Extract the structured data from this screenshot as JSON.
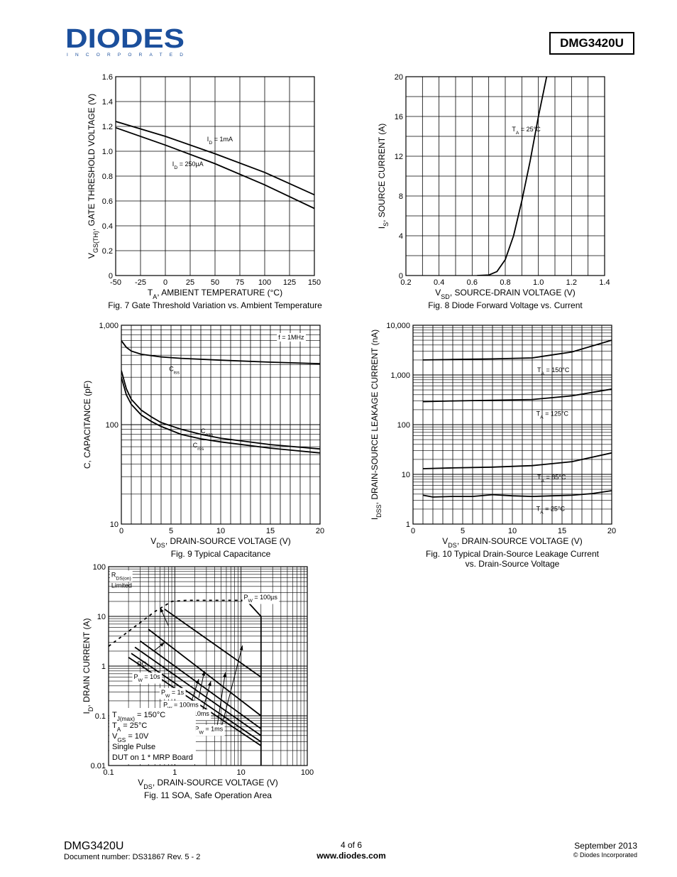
{
  "header": {
    "logo_text": "DIODES",
    "logo_subtext": "INCORPORATED",
    "part_number": "DMG3420U"
  },
  "footer": {
    "part_number": "DMG3420U",
    "document_number": "Document number: DS31867 Rev. 5 - 2",
    "page": "4 of 6",
    "url": "www.diodes.com",
    "date": "September 2013",
    "copyright": "© Diodes Incorporated"
  },
  "chart_data": [
    {
      "id": "fig7",
      "type": "line",
      "caption": "Fig. 7 Gate Threshold Variation vs. Ambient Temperature",
      "xlabel_parts": [
        [
          "T",
          ""
        ],
        [
          "A",
          "sub"
        ],
        [
          ", AMBIENT TEMPERATURE (°C)",
          ""
        ]
      ],
      "ylabel_parts": [
        [
          "V",
          ""
        ],
        [
          "GS(TH)",
          "sub"
        ],
        [
          ", GATE THRESHOLD VOLTAGE (V)",
          ""
        ]
      ],
      "xlim": [
        -50,
        150
      ],
      "ylim": [
        0,
        1.6
      ],
      "xticks": [
        -50,
        -25,
        0,
        25,
        50,
        75,
        100,
        125,
        150
      ],
      "xtick_labels": [
        "-50",
        "-25",
        "0",
        "25",
        "50",
        "75",
        "100",
        "125",
        "150"
      ],
      "yticks": [
        0,
        0.2,
        0.4,
        0.6,
        0.8,
        1.0,
        1.2,
        1.4,
        1.6
      ],
      "ytick_labels": [
        "0",
        "0.2",
        "0.4",
        "0.6",
        "0.8",
        "1.0",
        "1.2",
        "1.4",
        "1.6"
      ],
      "grid": true,
      "series": [
        {
          "x": [
            -50,
            0,
            50,
            100,
            150
          ],
          "y": [
            1.24,
            1.12,
            0.98,
            0.83,
            0.65
          ]
        },
        {
          "x": [
            -50,
            0,
            50,
            100,
            150
          ],
          "y": [
            1.19,
            1.05,
            0.9,
            0.73,
            0.54
          ]
        }
      ],
      "annotations": [
        {
          "parts": [
            [
              "I",
              ""
            ],
            [
              "D",
              "sub"
            ],
            [
              " = 1mA",
              ""
            ]
          ],
          "x": 42,
          "y": 1.08
        },
        {
          "parts": [
            [
              "I",
              ""
            ],
            [
              "D",
              "sub"
            ],
            [
              " = 250µA",
              ""
            ]
          ],
          "x": 7,
          "y": 0.88
        }
      ]
    },
    {
      "id": "fig8",
      "type": "line",
      "caption": "Fig. 8 Diode Forward Voltage vs. Current",
      "xlabel_parts": [
        [
          "V",
          ""
        ],
        [
          "SD",
          "sub"
        ],
        [
          ", SOURCE-DRAIN VOLTAGE (V)",
          ""
        ]
      ],
      "ylabel_parts": [
        [
          "I",
          ""
        ],
        [
          "S",
          "sub"
        ],
        [
          ", SOURCE CURRENT (A)",
          ""
        ]
      ],
      "xlim": [
        0.2,
        1.4
      ],
      "ylim": [
        0,
        20
      ],
      "xticks": [
        0.2,
        0.4,
        0.6,
        0.8,
        1.0,
        1.2,
        1.4
      ],
      "xtick_labels": [
        "0.2",
        "0.4",
        "0.6",
        "0.8",
        "1.0",
        "1.2",
        "1.4"
      ],
      "yticks": [
        0,
        4,
        8,
        12,
        16,
        20
      ],
      "ytick_labels": [
        "0",
        "4",
        "8",
        "12",
        "16",
        "20"
      ],
      "minor_x_step": 0.1,
      "minor_y_step": 2,
      "grid": true,
      "series": [
        {
          "name": "TA = 25°C",
          "x": [
            0.63,
            0.7,
            0.75,
            0.8,
            0.85,
            0.9,
            0.95,
            1.0,
            1.05
          ],
          "y": [
            0.0,
            0.05,
            0.4,
            1.6,
            4.0,
            7.5,
            11.5,
            16.0,
            20.0
          ]
        }
      ],
      "annotations": [
        {
          "parts": [
            [
              "T",
              ""
            ],
            [
              "A",
              "sub"
            ],
            [
              " = 25°C",
              ""
            ]
          ],
          "x": 0.84,
          "y": 14.5
        }
      ]
    },
    {
      "id": "fig9",
      "type": "line",
      "caption": "Fig. 9 Typical Capacitance",
      "xlabel_parts": [
        [
          "V",
          ""
        ],
        [
          "DS",
          "sub"
        ],
        [
          ", DRAIN-SOURCE VOLTAGE (V)",
          ""
        ]
      ],
      "ylabel_parts": [
        [
          "C, CAPACITANCE (pF)",
          ""
        ]
      ],
      "xlim": [
        0,
        20
      ],
      "ylim": [
        10,
        1000
      ],
      "ylog": true,
      "xticks": [
        0,
        5,
        10,
        15,
        20
      ],
      "xtick_labels": [
        "0",
        "5",
        "10",
        "15",
        "20"
      ],
      "yticks": [
        10,
        100,
        1000
      ],
      "ytick_labels": [
        "10",
        "100",
        "1,000"
      ],
      "minor_x_step": 1,
      "grid": true,
      "series": [
        {
          "name": "Ciss",
          "x": [
            0,
            0.5,
            1,
            2,
            4,
            6,
            10,
            15,
            20
          ],
          "y": [
            700,
            600,
            550,
            510,
            480,
            465,
            445,
            425,
            410
          ]
        },
        {
          "name": "Coss",
          "x": [
            0,
            0.5,
            1,
            2,
            3,
            4,
            6,
            8,
            10,
            15,
            20
          ],
          "y": [
            350,
            230,
            180,
            140,
            120,
            105,
            90,
            80,
            73,
            63,
            57
          ]
        },
        {
          "name": "Crss",
          "x": [
            0,
            0.5,
            1,
            2,
            3,
            4,
            6,
            8,
            10,
            15,
            20
          ],
          "y": [
            300,
            200,
            160,
            125,
            108,
            96,
            80,
            72,
            67,
            58,
            52
          ]
        }
      ],
      "annotations": [
        {
          "parts": [
            [
              "f = 1MHz",
              ""
            ]
          ],
          "x": 15.8,
          "y": 720,
          "box": true
        },
        {
          "parts": [
            [
              "C",
              ""
            ],
            [
              "iss",
              "sub"
            ]
          ],
          "x": 4.8,
          "y": 345
        },
        {
          "parts": [
            [
              "C",
              ""
            ],
            [
              "oss",
              "sub"
            ]
          ],
          "x": 8.0,
          "y": 82
        },
        {
          "parts": [
            [
              "C",
              ""
            ],
            [
              "rss",
              "sub"
            ]
          ],
          "x": 7.2,
          "y": 59
        }
      ]
    },
    {
      "id": "fig10",
      "type": "line",
      "caption": "Fig. 10 Typical Drain-Source Leakage Current",
      "caption2": "vs. Drain-Source Voltage",
      "xlabel_parts": [
        [
          "V",
          ""
        ],
        [
          "DS",
          "sub"
        ],
        [
          ", DRAIN-SOURCE VOLTAGE (V)",
          ""
        ]
      ],
      "ylabel_parts": [
        [
          "I",
          ""
        ],
        [
          "DSS",
          "sub"
        ],
        [
          ", DRAIN-SOURCE LEAKAGE CURRENT (nA)",
          ""
        ]
      ],
      "xlim": [
        0,
        20
      ],
      "ylim": [
        1,
        10000
      ],
      "ylog": true,
      "xticks": [
        0,
        5,
        10,
        15,
        20
      ],
      "xtick_labels": [
        "0",
        "5",
        "10",
        "15",
        "20"
      ],
      "yticks": [
        1,
        10,
        100,
        1000,
        10000
      ],
      "ytick_labels": [
        "1",
        "10",
        "100",
        "1,000",
        "10,000"
      ],
      "minor_x_step": 1,
      "grid": true,
      "series": [
        {
          "name": "TA = 150°C",
          "x": [
            1,
            4,
            8,
            12,
            16,
            20
          ],
          "y": [
            2000,
            2050,
            2100,
            2200,
            2900,
            5000
          ]
        },
        {
          "name": "TA = 125°C",
          "x": [
            1,
            4,
            8,
            12,
            16,
            20
          ],
          "y": [
            290,
            300,
            310,
            320,
            380,
            520
          ]
        },
        {
          "name": "TA = 85°C",
          "x": [
            1,
            4,
            8,
            12,
            16,
            20
          ],
          "y": [
            13,
            13.5,
            14,
            15,
            18,
            27
          ]
        },
        {
          "name": "TA = 25°C",
          "x": [
            1,
            2,
            4,
            6,
            8,
            10,
            12,
            14,
            16,
            18,
            20
          ],
          "y": [
            3.8,
            3.5,
            3.6,
            3.6,
            3.9,
            3.7,
            3.6,
            3.7,
            3.8,
            4.1,
            4.7
          ]
        }
      ],
      "annotations": [
        {
          "parts": [
            [
              "T",
              ""
            ],
            [
              "A",
              "sub"
            ],
            [
              " = 150°C",
              ""
            ]
          ],
          "x": 12.5,
          "y": 1150
        },
        {
          "parts": [
            [
              "T",
              ""
            ],
            [
              "A",
              "sub"
            ],
            [
              " = 125°C",
              ""
            ]
          ],
          "x": 12.4,
          "y": 150
        },
        {
          "parts": [
            [
              "T",
              ""
            ],
            [
              "A",
              "sub"
            ],
            [
              " = 85°C",
              ""
            ]
          ],
          "x": 12.5,
          "y": 8
        },
        {
          "parts": [
            [
              "T",
              ""
            ],
            [
              "A",
              "sub"
            ],
            [
              " = 25°C",
              ""
            ]
          ],
          "x": 12.4,
          "y": 1.85
        }
      ]
    },
    {
      "id": "fig11",
      "type": "line",
      "caption": "Fig. 11 SOA, Safe Operation Area",
      "xlabel_parts": [
        [
          "V",
          ""
        ],
        [
          "DS",
          "sub"
        ],
        [
          ", DRAIN-SOURCE VOLTAGE (V)",
          ""
        ]
      ],
      "ylabel_parts": [
        [
          "I",
          ""
        ],
        [
          "D",
          "sub"
        ],
        [
          ", DRAIN CURRENT (A)",
          ""
        ]
      ],
      "xlim": [
        0.1,
        100
      ],
      "ylim": [
        0.01,
        100
      ],
      "xlog": true,
      "ylog": true,
      "xticks": [
        0.1,
        1,
        10,
        100
      ],
      "xtick_labels": [
        "0.1",
        "1",
        "10",
        "100"
      ],
      "yticks": [
        0.01,
        0.1,
        1,
        10,
        100
      ],
      "ytick_labels": [
        "0.01",
        "0.1",
        "1",
        "10",
        "100"
      ],
      "grid": true,
      "series": [
        {
          "name": "RDS(on) Limited",
          "dashed": true,
          "x": [
            0.1,
            0.2,
            0.5,
            0.9,
            1.5,
            3.0,
            6.0,
            10.0,
            12.0
          ],
          "y": [
            2.5,
            5.0,
            12.5,
            20.0,
            21.0,
            21.0,
            21.0,
            21.0,
            21.0
          ]
        },
        {
          "name": "PW = 100µs",
          "x": [
            12.0,
            20.0,
            20.0
          ],
          "y": [
            21.0,
            10.0,
            0.01
          ]
        },
        {
          "name": "PW = 1ms",
          "x": [
            0.7,
            20.0
          ],
          "y": [
            14.0,
            0.6
          ]
        },
        {
          "name": "PW = 10ms",
          "x": [
            0.4,
            20.0
          ],
          "y": [
            5.5,
            0.1
          ]
        },
        {
          "name": "PW = 100ms",
          "x": [
            0.3,
            20.0
          ],
          "y": [
            3.2,
            0.055
          ]
        },
        {
          "name": "PW = 1s",
          "x": [
            0.25,
            20.0
          ],
          "y": [
            2.4,
            0.04
          ]
        },
        {
          "name": "PW = 10s",
          "x": [
            0.22,
            20.0
          ],
          "y": [
            1.8,
            0.03
          ]
        },
        {
          "name": "DC",
          "x": [
            0.2,
            20.0
          ],
          "y": [
            1.5,
            0.025
          ]
        }
      ],
      "annotations": [
        {
          "parts": [
            [
              "R",
              ""
            ],
            [
              "DS(on)",
              "sub"
            ]
          ],
          "x": 0.11,
          "y": 62,
          "box": true
        },
        {
          "parts": [
            [
              "Limited",
              ""
            ]
          ],
          "x": 0.11,
          "y": 38
        },
        {
          "parts": [
            [
              "P",
              ""
            ],
            [
              "W",
              "sub"
            ],
            [
              " = 100µs",
              ""
            ]
          ],
          "x": 11.0,
          "y": 22,
          "box": true
        },
        {
          "parts": [
            [
              "DC",
              ""
            ]
          ],
          "x": 0.27,
          "y": 1.0
        },
        {
          "parts": [
            [
              "P",
              ""
            ],
            [
              "W",
              "sub"
            ],
            [
              " = 10s",
              ""
            ]
          ],
          "x": 0.24,
          "y": 0.55,
          "box": true
        },
        {
          "parts": [
            [
              "P",
              ""
            ],
            [
              "W",
              "sub"
            ],
            [
              " = 1s",
              ""
            ]
          ],
          "x": 0.62,
          "y": 0.27,
          "box": true
        },
        {
          "parts": [
            [
              "P",
              ""
            ],
            [
              "W",
              "sub"
            ],
            [
              " = 100ms",
              ""
            ]
          ],
          "x": 0.67,
          "y": 0.15,
          "box": true
        },
        {
          "parts": [
            [
              "P",
              ""
            ],
            [
              "W",
              "sub"
            ],
            [
              " = 10ms",
              ""
            ]
          ],
          "x": 1.1,
          "y": 0.1,
          "box": true
        },
        {
          "parts": [
            [
              "P",
              ""
            ],
            [
              "W",
              "sub"
            ],
            [
              " = 1ms",
              ""
            ]
          ],
          "x": 2.0,
          "y": 0.049,
          "box": true
        }
      ],
      "arrows": [
        [
          0.48,
          2.0,
          0.7,
          3.0
        ],
        [
          2.3,
          0.23,
          2.8,
          0.8
        ],
        [
          1.7,
          0.16,
          2.3,
          0.55
        ],
        [
          2.5,
          0.1,
          3.5,
          0.5
        ],
        [
          4.2,
          0.045,
          5.8,
          0.75
        ],
        [
          4.8,
          0.045,
          10.5,
          2.6
        ],
        [
          0.8,
          6.5,
          0.6,
          15.0
        ]
      ],
      "notes": [
        [
          [
            "T",
            ""
          ],
          [
            "J(max)",
            "sub"
          ],
          [
            " = 150°C",
            ""
          ]
        ],
        [
          [
            "T",
            ""
          ],
          [
            "A",
            "sub"
          ],
          [
            " = 25°C",
            ""
          ]
        ],
        [
          [
            "V",
            ""
          ],
          [
            "GS",
            "sub"
          ],
          [
            " = 10V",
            ""
          ]
        ],
        [
          [
            "Single Pulse",
            ""
          ]
        ],
        [
          [
            "DUT on 1 * MRP Board",
            ""
          ]
        ]
      ]
    }
  ]
}
